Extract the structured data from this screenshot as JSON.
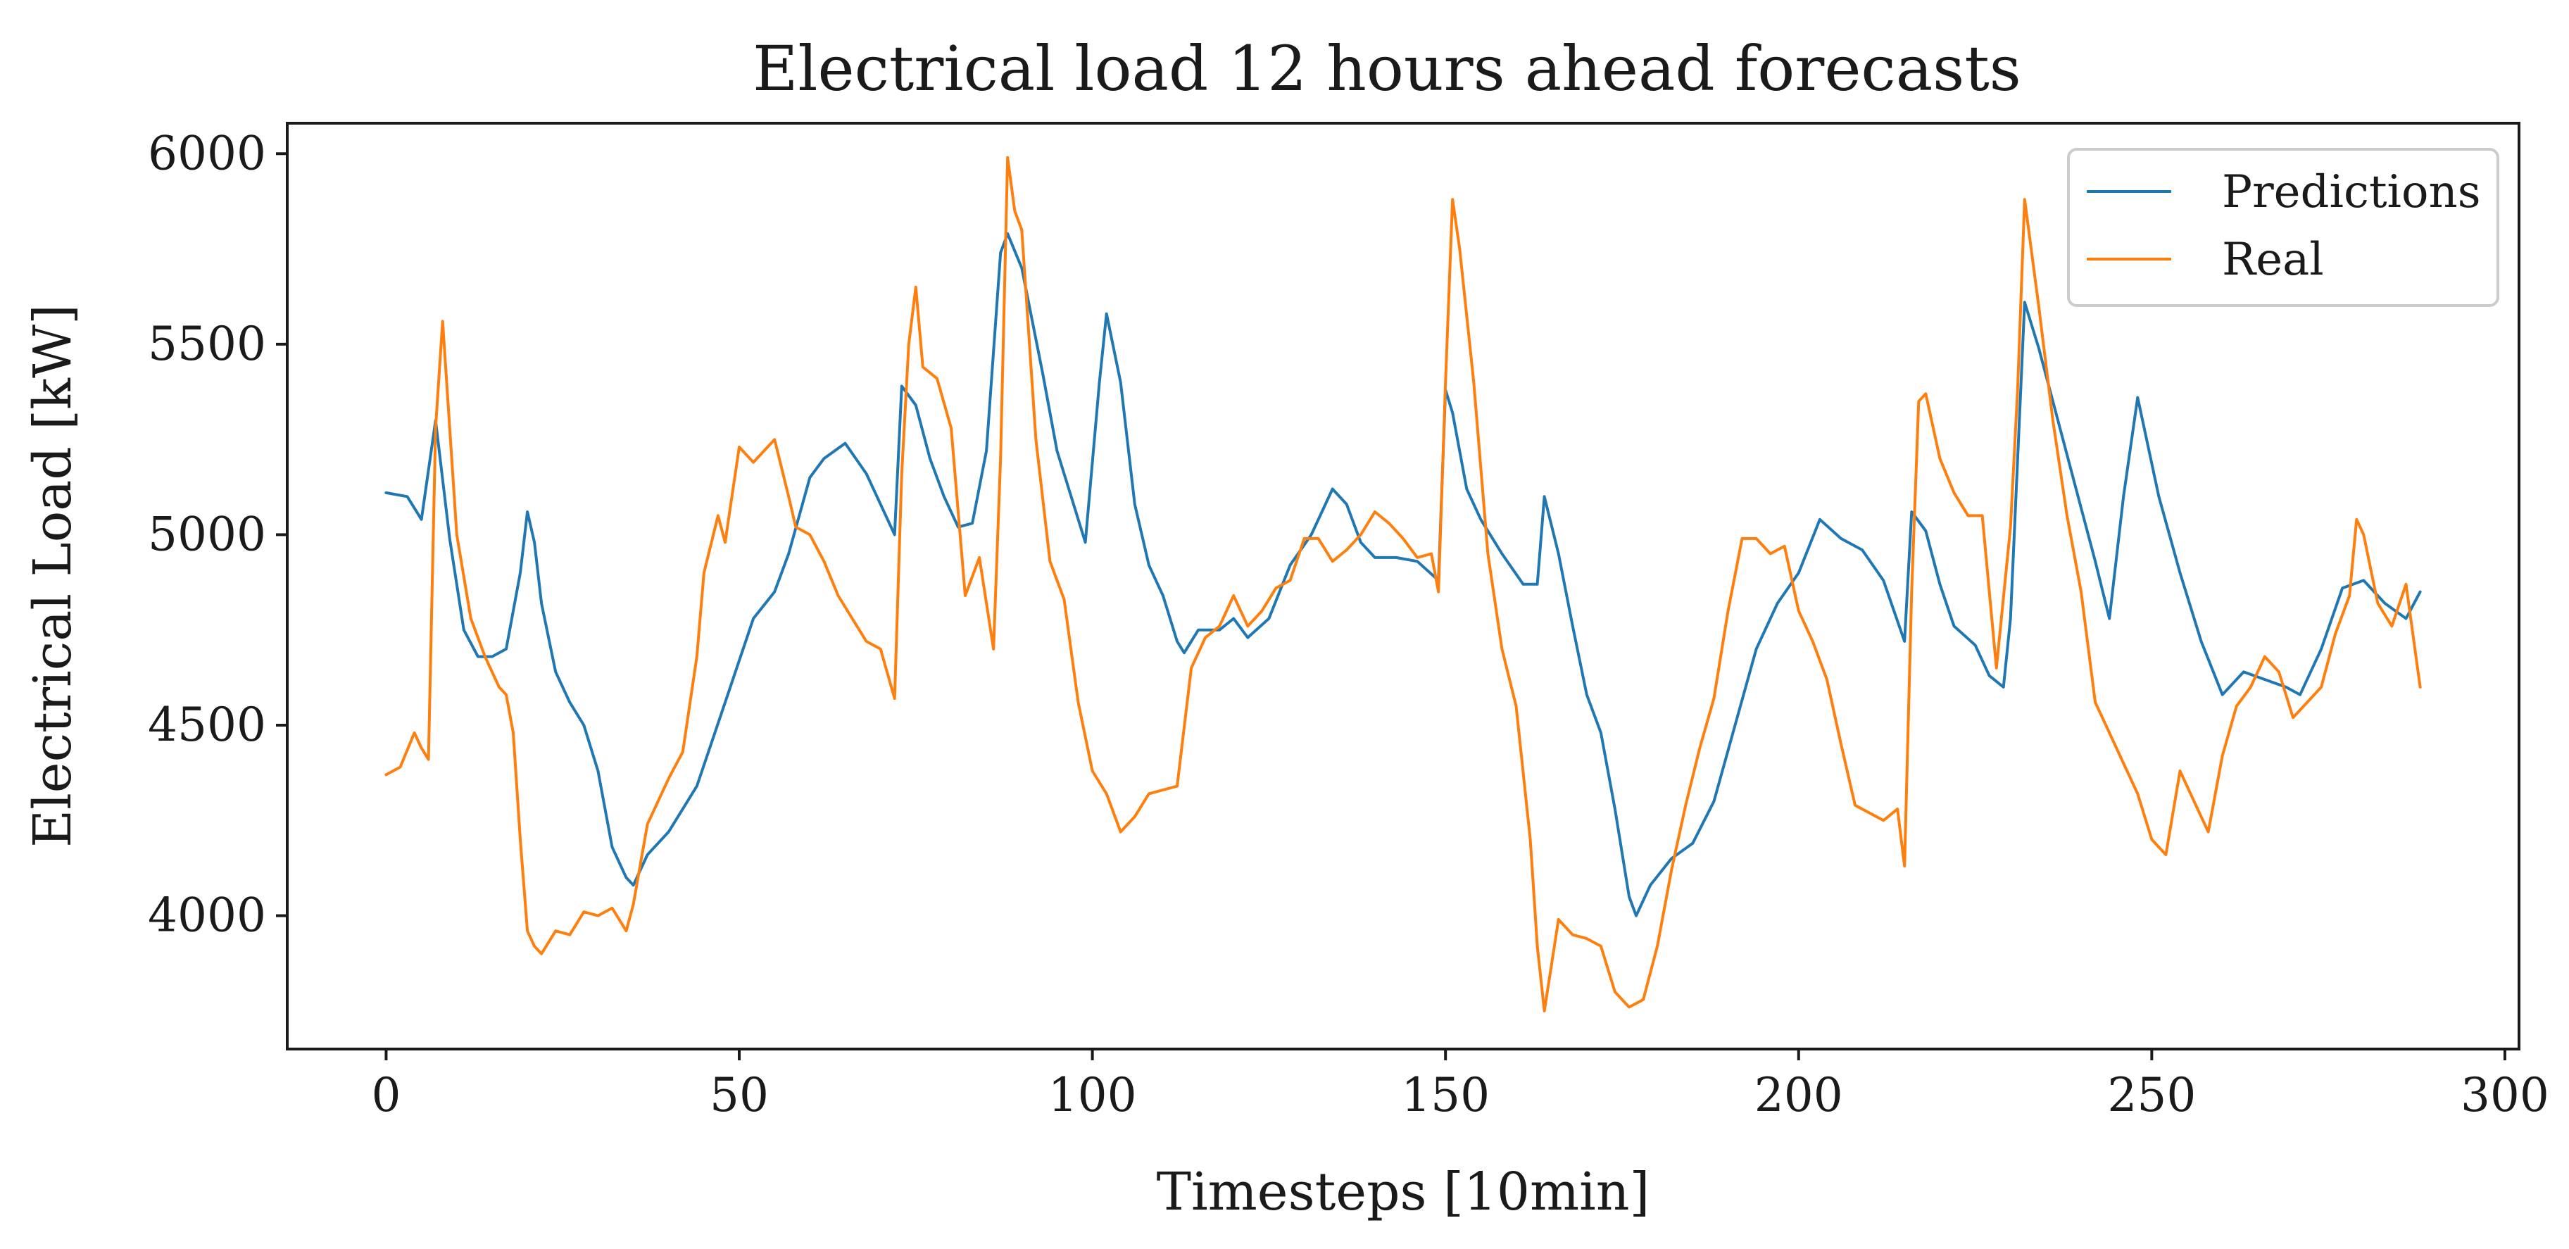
{
  "chart_data": {
    "type": "line",
    "title": "Electrical load 12 hours ahead forecasts",
    "xlabel": "Timesteps [10min]",
    "ylabel": "Electrical Load [kW]",
    "xlim": [
      -14,
      302
    ],
    "ylim": [
      3650,
      6080
    ],
    "xticks": [
      0,
      50,
      100,
      150,
      200,
      250,
      300
    ],
    "yticks": [
      4000,
      4500,
      5000,
      5500,
      6000
    ],
    "grid": false,
    "legend_position": "top-right",
    "series": [
      {
        "name": "Predictions",
        "color": "#1f77b4",
        "x": [
          0,
          3,
          5,
          7,
          9,
          11,
          13,
          15,
          17,
          19,
          20,
          21,
          22,
          24,
          26,
          28,
          30,
          32,
          34,
          35,
          37,
          40,
          44,
          48,
          52,
          55,
          57,
          60,
          62,
          65,
          68,
          70,
          72,
          73,
          75,
          77,
          79,
          81,
          83,
          85,
          87,
          88,
          90,
          93,
          95,
          97,
          99,
          101,
          102,
          104,
          106,
          108,
          110,
          112,
          113,
          115,
          118,
          120,
          122,
          125,
          128,
          131,
          134,
          136,
          138,
          140,
          143,
          146,
          149,
          150,
          151,
          153,
          155,
          158,
          161,
          163,
          164,
          166,
          168,
          170,
          172,
          174,
          176,
          177,
          179,
          182,
          185,
          188,
          191,
          194,
          197,
          200,
          203,
          206,
          209,
          212,
          215,
          216,
          218,
          220,
          222,
          225,
          227,
          229,
          230,
          232,
          234,
          236,
          239,
          242,
          244,
          246,
          248,
          251,
          254,
          257,
          260,
          263,
          266,
          269,
          271,
          274,
          277,
          280,
          283,
          286,
          288
        ],
        "values": [
          5110,
          5100,
          5040,
          5300,
          4990,
          4750,
          4680,
          4680,
          4700,
          4900,
          5060,
          4980,
          4820,
          4640,
          4560,
          4500,
          4380,
          4180,
          4100,
          4080,
          4160,
          4220,
          4340,
          4560,
          4780,
          4850,
          4950,
          5150,
          5200,
          5240,
          5160,
          5080,
          5000,
          5390,
          5340,
          5200,
          5100,
          5020,
          5030,
          5220,
          5740,
          5790,
          5700,
          5420,
          5220,
          5100,
          4980,
          5400,
          5580,
          5400,
          5080,
          4920,
          4840,
          4720,
          4690,
          4750,
          4750,
          4780,
          4730,
          4780,
          4920,
          5000,
          5120,
          5080,
          4980,
          4940,
          4940,
          4930,
          4880,
          5380,
          5320,
          5120,
          5040,
          4950,
          4870,
          4870,
          5100,
          4950,
          4760,
          4580,
          4480,
          4280,
          4050,
          4000,
          4080,
          4150,
          4190,
          4300,
          4500,
          4700,
          4820,
          4900,
          5040,
          4990,
          4960,
          4880,
          4720,
          5060,
          5010,
          4870,
          4760,
          4710,
          4630,
          4600,
          4780,
          5610,
          5490,
          5350,
          5140,
          4930,
          4780,
          5100,
          5360,
          5100,
          4900,
          4720,
          4580,
          4640,
          4620,
          4600,
          4580,
          4700,
          4860,
          4880,
          4820,
          4780,
          4850
        ]
      },
      {
        "name": "Real",
        "color": "#ff7f0e",
        "x": [
          0,
          2,
          4,
          5,
          6,
          7,
          8,
          10,
          12,
          14,
          16,
          17,
          18,
          19,
          20,
          21,
          22,
          24,
          26,
          28,
          30,
          32,
          34,
          35,
          37,
          40,
          42,
          44,
          45,
          47,
          48,
          50,
          52,
          54,
          55,
          57,
          58,
          60,
          62,
          64,
          66,
          68,
          70,
          72,
          73,
          74,
          75,
          76,
          78,
          80,
          82,
          84,
          86,
          87,
          88,
          89,
          90,
          92,
          94,
          96,
          98,
          100,
          102,
          104,
          106,
          108,
          110,
          112,
          114,
          116,
          118,
          120,
          122,
          124,
          126,
          128,
          130,
          132,
          134,
          136,
          138,
          140,
          142,
          144,
          146,
          148,
          149,
          150,
          151,
          152,
          154,
          156,
          158,
          160,
          162,
          163,
          164,
          166,
          168,
          170,
          172,
          174,
          176,
          178,
          180,
          182,
          184,
          186,
          188,
          190,
          192,
          194,
          196,
          198,
          200,
          202,
          204,
          206,
          208,
          210,
          212,
          214,
          215,
          216,
          217,
          218,
          220,
          222,
          224,
          226,
          228,
          230,
          231,
          232,
          234,
          236,
          238,
          240,
          242,
          244,
          246,
          248,
          250,
          252,
          254,
          256,
          258,
          260,
          262,
          264,
          266,
          268,
          270,
          272,
          274,
          276,
          278,
          279,
          280,
          282,
          284,
          286,
          288
        ],
        "values": [
          4370,
          4390,
          4480,
          4440,
          4410,
          5280,
          5560,
          5000,
          4780,
          4680,
          4600,
          4580,
          4480,
          4200,
          3960,
          3920,
          3900,
          3960,
          3950,
          4010,
          4000,
          4020,
          3960,
          4030,
          4240,
          4360,
          4430,
          4680,
          4900,
          5050,
          4980,
          5230,
          5190,
          5230,
          5250,
          5100,
          5020,
          5000,
          4930,
          4840,
          4780,
          4720,
          4700,
          4570,
          5160,
          5500,
          5650,
          5440,
          5410,
          5280,
          4840,
          4940,
          4700,
          5200,
          5990,
          5850,
          5800,
          5250,
          4930,
          4830,
          4560,
          4380,
          4320,
          4220,
          4260,
          4320,
          4330,
          4340,
          4650,
          4730,
          4760,
          4840,
          4760,
          4800,
          4860,
          4880,
          4990,
          4990,
          4930,
          4960,
          5000,
          5060,
          5030,
          4990,
          4940,
          4950,
          4850,
          5400,
          5880,
          5750,
          5400,
          4950,
          4700,
          4550,
          4200,
          3920,
          3750,
          3990,
          3950,
          3940,
          3920,
          3800,
          3760,
          3780,
          3920,
          4120,
          4290,
          4440,
          4570,
          4800,
          4990,
          4990,
          4950,
          4970,
          4800,
          4720,
          4620,
          4450,
          4290,
          4270,
          4250,
          4280,
          4130,
          4850,
          5350,
          5370,
          5200,
          5110,
          5050,
          5050,
          4650,
          5020,
          5380,
          5880,
          5600,
          5300,
          5050,
          4850,
          4560,
          4480,
          4400,
          4320,
          4200,
          4160,
          4380,
          4300,
          4220,
          4420,
          4550,
          4600,
          4680,
          4640,
          4520,
          4560,
          4600,
          4740,
          4840,
          5040,
          5000,
          4820,
          4760,
          4870,
          4600
        ]
      }
    ]
  }
}
